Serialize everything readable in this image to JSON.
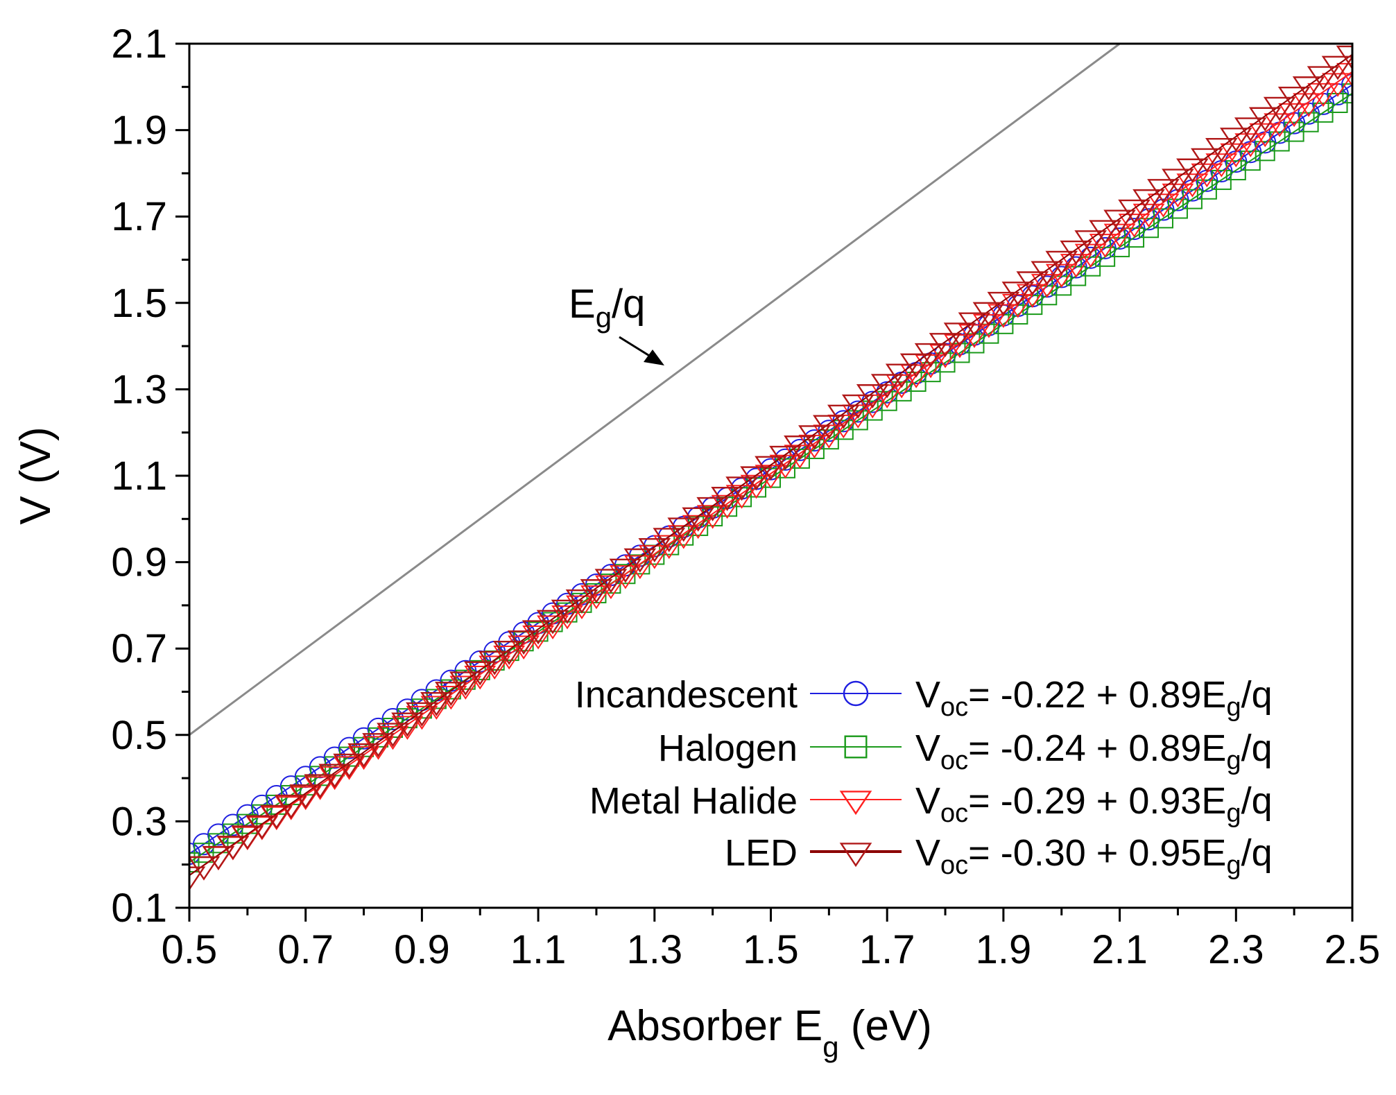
{
  "chart_data": {
    "type": "scatter",
    "title": "",
    "xlabel": {
      "main": "Absorber E",
      "sub": "g",
      "unit": " (eV)"
    },
    "ylabel": "V (V)",
    "xlim": [
      0.5,
      2.5
    ],
    "ylim": [
      0.1,
      2.1
    ],
    "x_ticks": [
      "0.5",
      "0.7",
      "0.9",
      "1.1",
      "1.3",
      "1.5",
      "1.7",
      "1.9",
      "2.1",
      "2.3",
      "2.5"
    ],
    "y_ticks": [
      "0.1",
      "0.3",
      "0.5",
      "0.7",
      "0.9",
      "1.1",
      "1.3",
      "1.5",
      "1.7",
      "1.9",
      "2.1"
    ],
    "grid": false,
    "legend_position": "bottom-right",
    "reference_line": {
      "label": {
        "main": "E",
        "sub": "g",
        "tail": "/q"
      },
      "slope": 1.0,
      "intercept": 0.0,
      "color": "#8a8a8a"
    },
    "x": [
      0.5,
      0.525,
      0.55,
      0.575,
      0.6,
      0.625,
      0.65,
      0.675,
      0.7,
      0.725,
      0.75,
      0.775,
      0.8,
      0.825,
      0.85,
      0.875,
      0.9,
      0.925,
      0.95,
      0.975,
      1.0,
      1.025,
      1.05,
      1.075,
      1.1,
      1.125,
      1.15,
      1.175,
      1.2,
      1.225,
      1.25,
      1.275,
      1.3,
      1.325,
      1.35,
      1.375,
      1.4,
      1.425,
      1.45,
      1.475,
      1.5,
      1.525,
      1.55,
      1.575,
      1.6,
      1.625,
      1.65,
      1.675,
      1.7,
      1.725,
      1.75,
      1.775,
      1.8,
      1.825,
      1.85,
      1.875,
      1.9,
      1.925,
      1.95,
      1.975,
      2.0,
      2.025,
      2.05,
      2.075,
      2.1,
      2.125,
      2.15,
      2.175,
      2.2,
      2.225,
      2.25,
      2.275,
      2.3,
      2.325,
      2.35,
      2.375,
      2.4,
      2.425,
      2.45,
      2.475,
      2.5
    ],
    "series": [
      {
        "name": "Incandescent",
        "equation": {
          "lead": "V",
          "sub": "oc",
          "rest": "= -0.22 + 0.89E",
          "sub2": "g",
          "tail": "/q"
        },
        "intercept": -0.22,
        "slope": 0.89,
        "color": "#1f1fe0",
        "line_color": "#1f1fe0",
        "marker": "circle",
        "line_width": 2
      },
      {
        "name": "Halogen",
        "equation": {
          "lead": "V",
          "sub": "oc",
          "rest": "= -0.24 + 0.89E",
          "sub2": "g",
          "tail": "/q"
        },
        "intercept": -0.24,
        "slope": 0.89,
        "color": "#1a9a1a",
        "line_color": "#1a9a1a",
        "marker": "square",
        "line_width": 2
      },
      {
        "name": "Metal Halide",
        "equation": {
          "lead": "V",
          "sub": "oc",
          "rest": "= -0.29 + 0.93E",
          "sub2": "g",
          "tail": "/q"
        },
        "intercept": -0.29,
        "slope": 0.93,
        "color": "#ff2020",
        "line_color": "#ff2020",
        "marker": "triangle-down",
        "line_width": 2
      },
      {
        "name": "LED",
        "equation": {
          "lead": "V",
          "sub": "oc",
          "rest": "= -0.30 + 0.95E",
          "sub2": "g",
          "tail": "/q"
        },
        "intercept": -0.3,
        "slope": 0.95,
        "color": "#b01818",
        "line_color": "#8b0000",
        "marker": "triangle-down",
        "line_width": 4
      }
    ]
  }
}
